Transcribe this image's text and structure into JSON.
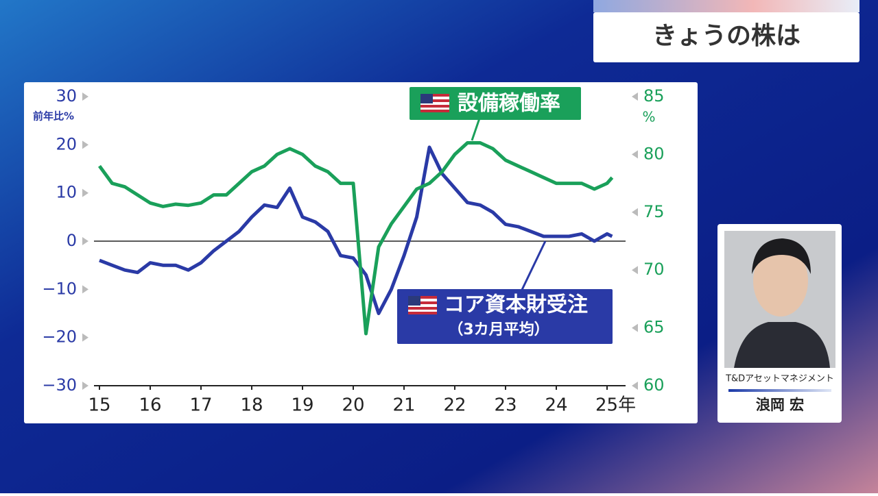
{
  "header": {
    "title": "きょうの株は"
  },
  "guest": {
    "company": "T&Dアセットマネジメント",
    "name": "浪岡 宏"
  },
  "chart_data": {
    "type": "line",
    "y_label": "前年比%",
    "y2_label": "%",
    "annotation": "（3カ月平均）",
    "x": [
      15,
      15.25,
      15.5,
      15.75,
      16,
      16.25,
      16.5,
      16.75,
      17,
      17.25,
      17.5,
      17.75,
      18,
      18.25,
      18.5,
      18.75,
      19,
      19.25,
      19.5,
      19.75,
      20,
      20.25,
      20.5,
      20.75,
      21,
      21.25,
      21.5,
      21.75,
      22,
      22.25,
      22.5,
      22.75,
      23,
      23.25,
      23.5,
      23.75,
      24,
      24.25,
      24.5,
      24.75,
      25,
      25.1
    ],
    "xlim": [
      14.95,
      25.35
    ],
    "xticks": [
      15,
      16,
      17,
      18,
      19,
      20,
      21,
      22,
      23,
      24,
      {
        "value": 25,
        "label": "25年"
      }
    ],
    "ylim": [
      -30,
      30
    ],
    "yticks": [
      {
        "value": -30,
        "label": "−30"
      },
      {
        "value": -20,
        "label": "−20"
      },
      {
        "value": -10,
        "label": "−10"
      },
      0,
      10,
      20,
      30
    ],
    "y2lim": [
      60,
      85
    ],
    "y2ticks": [
      60,
      65,
      70,
      75,
      80,
      85
    ],
    "series": [
      {
        "name": "コア資本財受注",
        "color": "#2a3aa6",
        "values": [
          -4,
          -5,
          -6,
          -6.5,
          -4.5,
          -5,
          -5,
          -6,
          -4.5,
          -2,
          0,
          2,
          5,
          7.5,
          7,
          11,
          5,
          4,
          2,
          -3,
          -3.5,
          -7,
          -15,
          -10,
          -3,
          5,
          19.5,
          14,
          11,
          8,
          7.5,
          6,
          3.5,
          3,
          2,
          1,
          1,
          1,
          1.5,
          0,
          1.5,
          1
        ]
      },
      {
        "name": "設備稼働率",
        "color": "#1aa05a",
        "axis": "y2",
        "values": [
          79,
          77.5,
          77.2,
          76.5,
          75.8,
          75.5,
          75.7,
          75.6,
          75.8,
          76.5,
          76.5,
          77.5,
          78.5,
          79,
          80,
          80.5,
          80,
          79,
          78.5,
          77.5,
          77.5,
          64.5,
          72,
          74,
          75.5,
          77,
          77.5,
          78.5,
          80,
          81,
          81,
          80.5,
          79.5,
          79,
          78.5,
          78,
          77.5,
          77.5,
          77.5,
          77,
          77.5,
          78
        ]
      }
    ]
  }
}
